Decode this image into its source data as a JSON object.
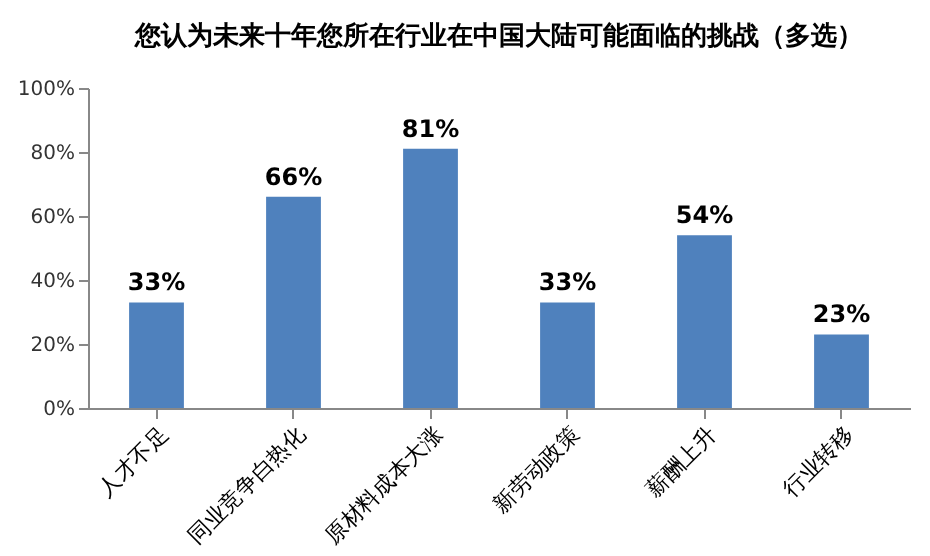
{
  "chart_data": {
    "type": "bar",
    "title": "您认为未来十年您所在行业在中国大陆可能面临的挑战（多选）",
    "categories": [
      "人才不足",
      "同业竞争白热化",
      "原材料成本大涨",
      "新劳动政策",
      "薪酬上升",
      "行业转移"
    ],
    "values": [
      33,
      66,
      81,
      33,
      54,
      23
    ],
    "color": "#4f81bd",
    "value_labels": [
      "33%",
      "66%",
      "81%",
      "33%",
      "54%",
      "23%"
    ],
    "ylim": [
      0,
      100
    ],
    "yticks": [
      {
        "value": 0,
        "label": "0%"
      },
      {
        "value": 20,
        "label": "20%"
      },
      {
        "value": 40,
        "label": "40%"
      },
      {
        "value": 60,
        "label": "60%"
      },
      {
        "value": 80,
        "label": "80%"
      },
      {
        "value": 100,
        "label": "100%"
      }
    ],
    "grid": false
  }
}
